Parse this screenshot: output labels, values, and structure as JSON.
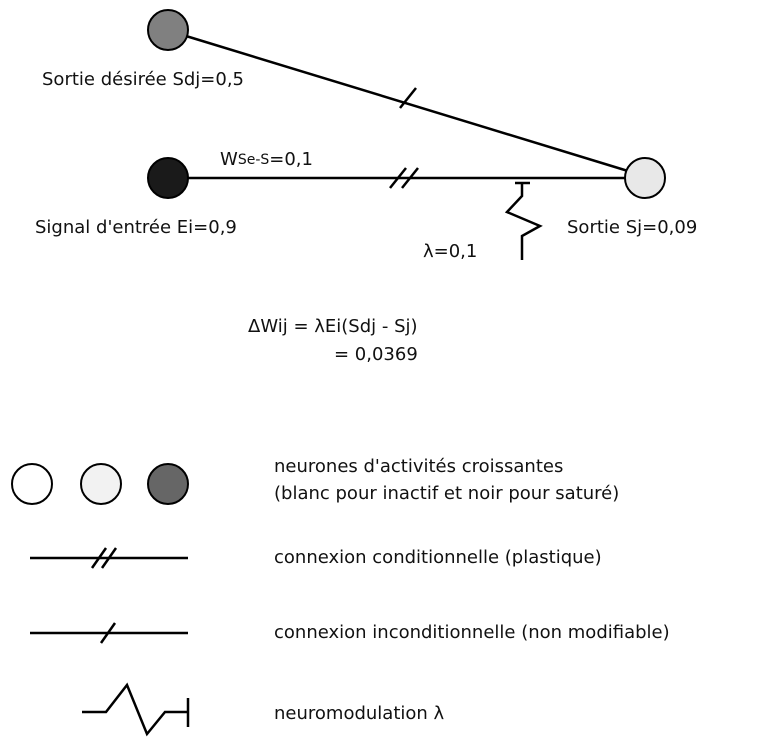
{
  "nodes": [
    {
      "label": "Sortie désirée Sdj=0,5"
    },
    {
      "label": "Signal d'entrée Ei=0,9"
    },
    {
      "label": "Sortie Sj=0,09"
    }
  ],
  "weight": {
    "symbol": "W",
    "subscript": "Se-S",
    "value": "=0,1"
  },
  "modulation": {
    "label": "λ=0,1"
  },
  "formula": [
    "ΔWij = λEi(Sdj - Sj)",
    "= 0,0369"
  ],
  "legend": [
    {
      "label": [
        "neurones d'activités croissantes",
        "(blanc pour inactif et noir pour saturé)"
      ]
    },
    {
      "label": [
        "connexion conditionnelle (plastique)"
      ]
    },
    {
      "label": [
        "connexion inconditionnelle (non modifiable)"
      ]
    },
    {
      "label": [
        "neuromodulation λ"
      ]
    }
  ]
}
